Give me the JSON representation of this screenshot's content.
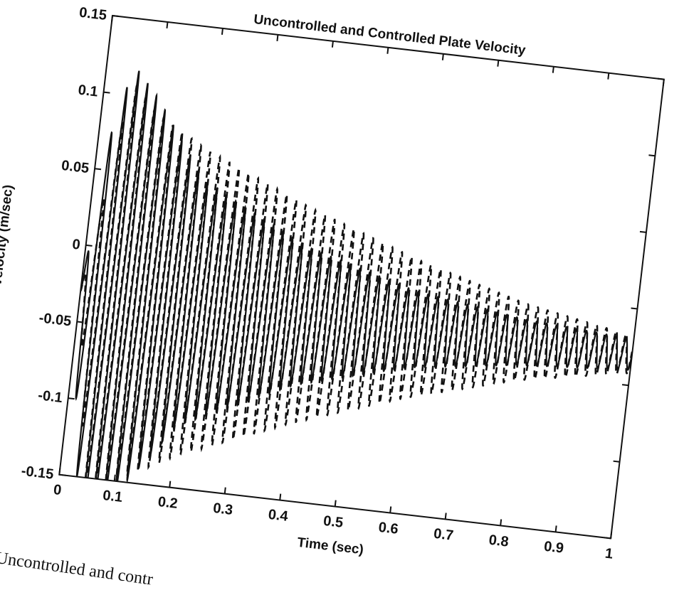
{
  "chart_data": {
    "type": "line",
    "title": "Uncontrolled and Controlled Plate Velocity",
    "xlabel": "Time (sec)",
    "ylabel": "Velocity (m/sec)",
    "xlim": [
      0,
      1
    ],
    "ylim": [
      -0.15,
      0.15
    ],
    "xticks": [
      "0",
      "0.1",
      "0.2",
      "0.3",
      "0.4",
      "0.5",
      "0.6",
      "0.7",
      "0.8",
      "0.9",
      "1"
    ],
    "yticks": [
      "-0.15",
      "-0.1",
      "-0.05",
      "0",
      "0.05",
      "0.1",
      "0.15"
    ],
    "grid": false,
    "series": [
      {
        "style": "solid",
        "signal": "damped oscillation",
        "offset": -0.03,
        "envelope": [
          {
            "t": 0.02,
            "amp": 0.1
          },
          {
            "t": 0.05,
            "amp": 0.15
          },
          {
            "t": 0.1,
            "amp": 0.13
          },
          {
            "t": 0.2,
            "amp": 0.08
          },
          {
            "t": 0.4,
            "amp": 0.045
          },
          {
            "t": 0.6,
            "amp": 0.025
          },
          {
            "t": 0.8,
            "amp": 0.015
          },
          {
            "t": 1.0,
            "amp": 0.01
          }
        ],
        "frequency_hz": 55
      },
      {
        "style": "dashed",
        "signal": "damped oscillation",
        "offset": -0.03,
        "envelope": [
          {
            "t": 0.05,
            "amp": 0.14
          },
          {
            "t": 0.1,
            "amp": 0.12
          },
          {
            "t": 0.2,
            "amp": 0.1
          },
          {
            "t": 0.4,
            "amp": 0.07
          },
          {
            "t": 0.6,
            "amp": 0.045
          },
          {
            "t": 0.8,
            "amp": 0.025
          },
          {
            "t": 1.0,
            "amp": 0.012
          }
        ],
        "frequency_hz": 55
      }
    ]
  },
  "caption": {
    "text": "Uncontrolled and contr"
  }
}
